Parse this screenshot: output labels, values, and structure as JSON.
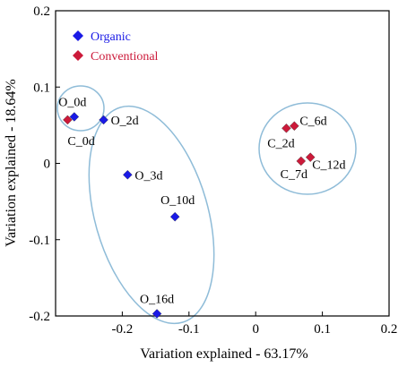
{
  "chart_data": {
    "type": "scatter",
    "xlabel": "Variation explained - 63.17%",
    "ylabel": "Variation explained - 18.64%",
    "xlim": [
      -0.3,
      0.2
    ],
    "ylim": [
      -0.2,
      0.2
    ],
    "x_ticks": [
      -0.2,
      -0.1,
      0,
      0.1,
      0.2
    ],
    "y_ticks": [
      -0.2,
      -0.1,
      0,
      0.1,
      0.2
    ],
    "x_tick_labels": [
      "-0.2",
      "-0.1",
      "0",
      "0.1",
      "0.2"
    ],
    "y_tick_labels": [
      "-0.2",
      "-0.1",
      "0",
      "0.1",
      "0.2"
    ],
    "legend_position": "top-left",
    "series": [
      {
        "name": "Organic",
        "color": "#1a1ae6",
        "marker": "diamond",
        "points": [
          {
            "label": "O_0d",
            "x": -0.272,
            "y": 0.061
          },
          {
            "label": "O_2d",
            "x": -0.228,
            "y": 0.057
          },
          {
            "label": "O_3d",
            "x": -0.192,
            "y": -0.015
          },
          {
            "label": "O_10d",
            "x": -0.121,
            "y": -0.07
          },
          {
            "label": "O_16d",
            "x": -0.148,
            "y": -0.197
          }
        ]
      },
      {
        "name": "Conventional",
        "color": "#cc1a3a",
        "marker": "diamond",
        "points": [
          {
            "label": "C_0d",
            "x": -0.282,
            "y": 0.057
          },
          {
            "label": "C_2d",
            "x": 0.046,
            "y": 0.046
          },
          {
            "label": "C_6d",
            "x": 0.058,
            "y": 0.049
          },
          {
            "label": "C_7d",
            "x": 0.068,
            "y": 0.003
          },
          {
            "label": "C_12d",
            "x": 0.082,
            "y": 0.008
          }
        ]
      }
    ],
    "ellipse_color": "#8fbcd8"
  }
}
